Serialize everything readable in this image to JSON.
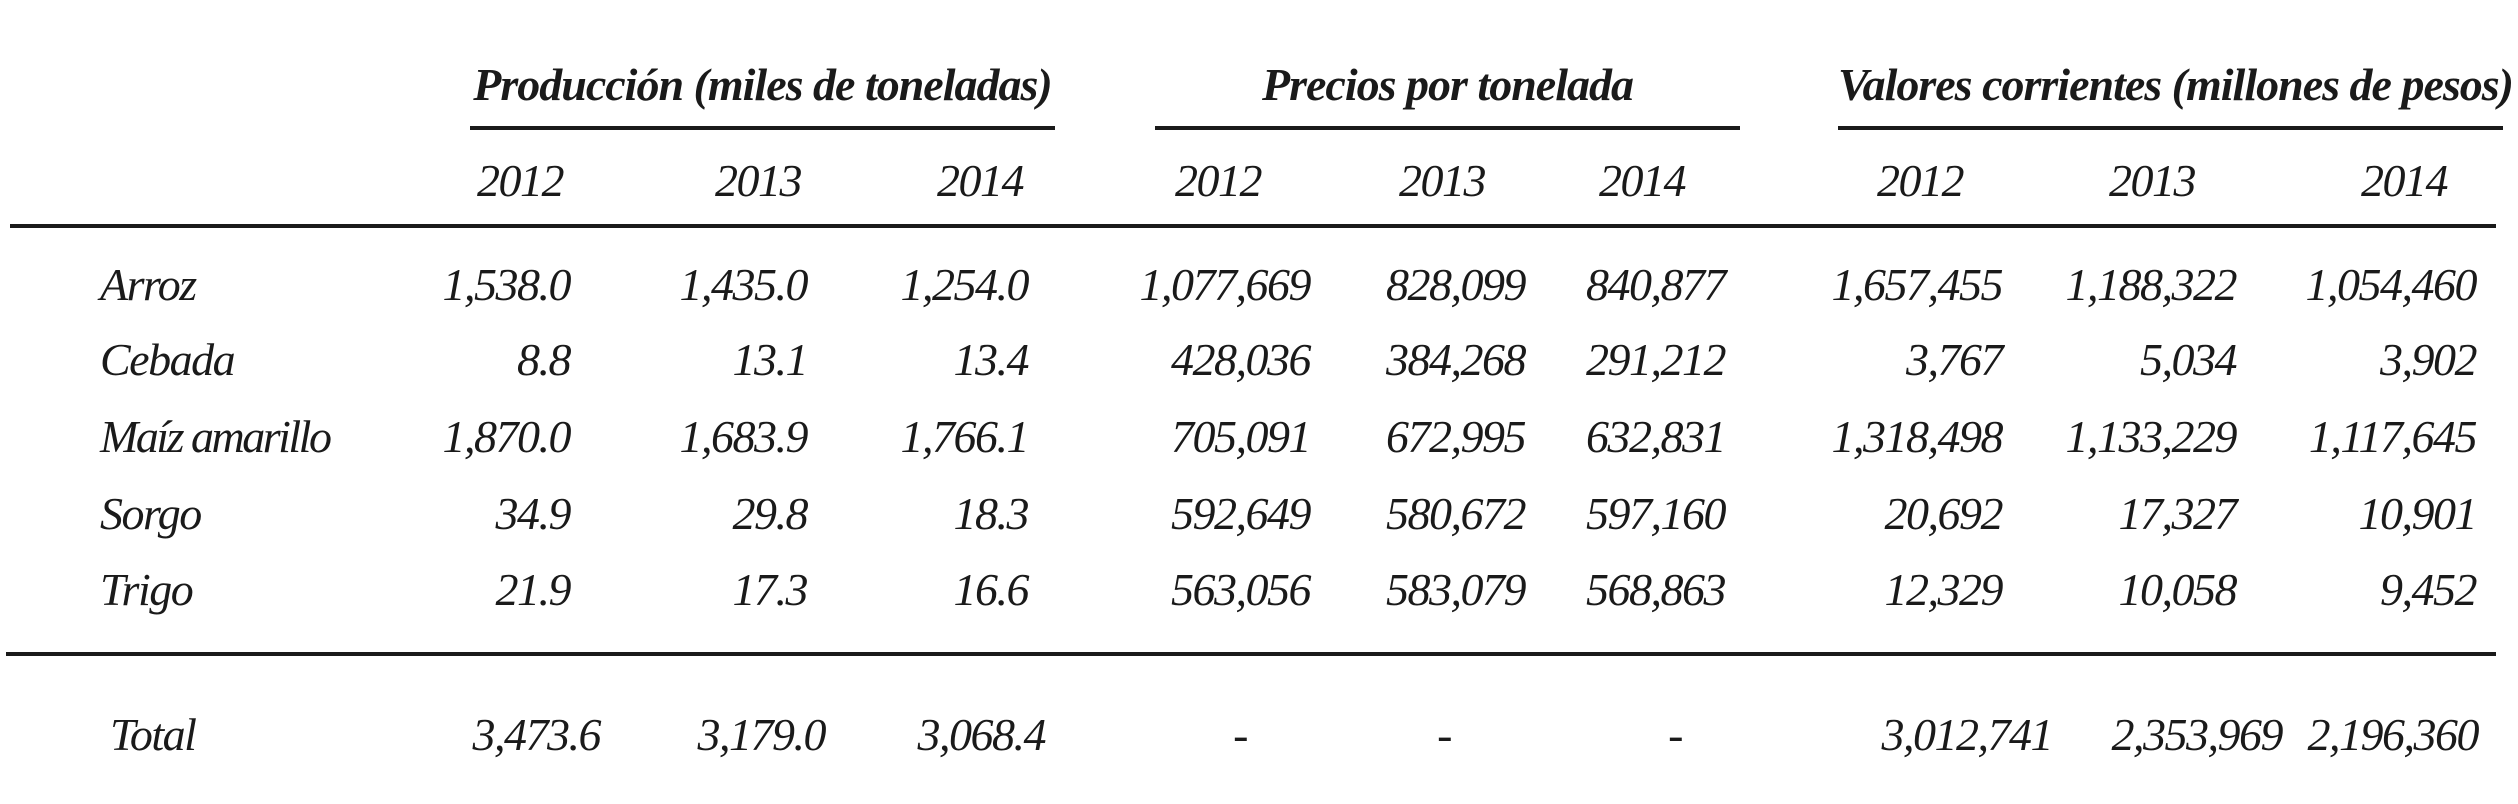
{
  "groups": [
    {
      "title": "Producción (miles de toneladas)"
    },
    {
      "title": "Precios por tonelada"
    },
    {
      "title": "Valores corrientes (millones de pesos)"
    }
  ],
  "years": [
    "2012",
    "2013",
    "2014",
    "2012",
    "2013",
    "2014",
    "2012",
    "2013",
    "2014"
  ],
  "rows": [
    {
      "label": "Arroz",
      "values": [
        "1,538.0",
        "1,435.0",
        "1,254.0",
        "1,077,669",
        "828,099",
        "840,877",
        "1,657,455",
        "1,188,322",
        "1,054,460"
      ]
    },
    {
      "label": "Cebada",
      "values": [
        "8.8",
        "13.1",
        "13.4",
        "428,036",
        "384,268",
        "291,212",
        "3,767",
        "5,034",
        "3,902"
      ]
    },
    {
      "label": "Maíz amarillo",
      "values": [
        "1,870.0",
        "1,683.9",
        "1,766.1",
        "705,091",
        "672,995",
        "632,831",
        "1,318,498",
        "1,133,229",
        "1,117,645"
      ]
    },
    {
      "label": "Sorgo",
      "values": [
        "34.9",
        "29.8",
        "18.3",
        "592,649",
        "580,672",
        "597,160",
        "20,692",
        "17,327",
        "10,901"
      ]
    },
    {
      "label": "Trigo",
      "values": [
        "21.9",
        "17.3",
        "16.6",
        "563,056",
        "583,079",
        "568,863",
        "12,329",
        "10,058",
        "9,452"
      ]
    }
  ],
  "total": {
    "label": "Total",
    "values": [
      "3,473.6",
      "3,179.0",
      "3,068.4",
      "-",
      "-",
      "-",
      "3,012,741",
      "2,353,969",
      "2,196,360"
    ]
  }
}
